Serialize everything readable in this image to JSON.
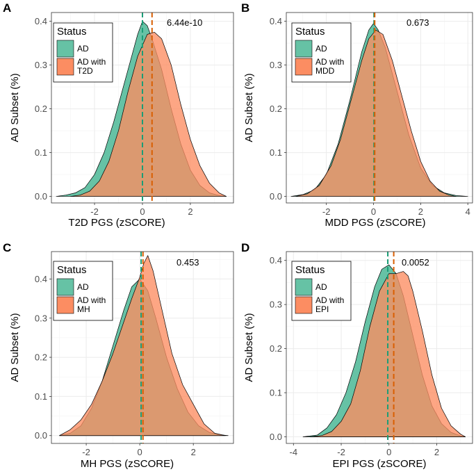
{
  "colors": {
    "ad": "#66c2a5",
    "ad_t2": "#fc8d62",
    "ad_line": "#1b9e77",
    "ad_t2_line": "#d95f02",
    "overlap": "#a08a50",
    "grid": "#ebebeb",
    "panel_border": "#333333"
  },
  "chart_data": [
    {
      "type": "area",
      "panel": "A",
      "pvalue": "6.44e-10",
      "xlabel": "T2D PGS (zSCORE)",
      "ylabel": "AD Subset (%)",
      "xlim": [
        -3.8,
        3.8
      ],
      "ylim": [
        -0.015,
        0.42
      ],
      "xticks": [
        -2,
        0,
        2
      ],
      "yticks": [
        0.0,
        0.1,
        0.2,
        0.3,
        0.4
      ],
      "legend": {
        "title": "Status",
        "labels": [
          "AD",
          "AD with\nT2D"
        ]
      },
      "series": [
        {
          "name": "AD",
          "mean": 0.0,
          "x": [
            -3.6,
            -3.2,
            -2.8,
            -2.4,
            -2.0,
            -1.6,
            -1.2,
            -0.8,
            -0.4,
            -0.2,
            0.0,
            0.2,
            0.4,
            0.8,
            1.2,
            1.6,
            2.0,
            2.4,
            2.8,
            3.2,
            3.5
          ],
          "y": [
            0.0,
            0.003,
            0.008,
            0.02,
            0.05,
            0.1,
            0.17,
            0.25,
            0.33,
            0.37,
            0.4,
            0.39,
            0.36,
            0.29,
            0.2,
            0.12,
            0.06,
            0.025,
            0.008,
            0.002,
            0.0
          ]
        },
        {
          "name": "AD with T2D",
          "mean": 0.4,
          "x": [
            -3.0,
            -2.6,
            -2.2,
            -1.8,
            -1.4,
            -1.0,
            -0.6,
            -0.2,
            0.2,
            0.5,
            0.8,
            1.2,
            1.6,
            2.0,
            2.4,
            2.8,
            3.2,
            3.5
          ],
          "y": [
            0.0,
            0.003,
            0.012,
            0.035,
            0.08,
            0.15,
            0.24,
            0.32,
            0.37,
            0.375,
            0.36,
            0.3,
            0.21,
            0.13,
            0.07,
            0.03,
            0.008,
            0.0
          ]
        }
      ]
    },
    {
      "type": "area",
      "panel": "B",
      "pvalue": "0.673",
      "xlabel": "MDD PGS (zSCORE)",
      "ylabel": "AD Subset (%)",
      "xlim": [
        -3.7,
        4.2
      ],
      "ylim": [
        -0.015,
        0.42
      ],
      "xticks": [
        -2,
        0,
        2,
        4
      ],
      "yticks": [
        0.0,
        0.1,
        0.2,
        0.3,
        0.4
      ],
      "legend": {
        "title": "Status",
        "labels": [
          "AD",
          "AD with\nMDD"
        ]
      },
      "series": [
        {
          "name": "AD",
          "mean": 0.02,
          "x": [
            -3.5,
            -3.0,
            -2.5,
            -2.0,
            -1.5,
            -1.0,
            -0.5,
            -0.2,
            0.0,
            0.2,
            0.5,
            1.0,
            1.5,
            2.0,
            2.5,
            3.0,
            3.5,
            4.0
          ],
          "y": [
            0.0,
            0.004,
            0.015,
            0.05,
            0.12,
            0.22,
            0.33,
            0.38,
            0.395,
            0.38,
            0.34,
            0.24,
            0.14,
            0.065,
            0.025,
            0.008,
            0.002,
            0.0
          ]
        },
        {
          "name": "AD with MDD",
          "mean": 0.05,
          "x": [
            -3.3,
            -2.8,
            -2.3,
            -1.8,
            -1.4,
            -1.0,
            -0.5,
            -0.2,
            0.1,
            0.4,
            0.8,
            1.2,
            1.6,
            2.0,
            2.4,
            2.8,
            3.2,
            3.5
          ],
          "y": [
            0.0,
            0.006,
            0.025,
            0.07,
            0.13,
            0.21,
            0.31,
            0.36,
            0.38,
            0.37,
            0.31,
            0.23,
            0.15,
            0.08,
            0.035,
            0.012,
            0.003,
            0.0
          ]
        }
      ]
    },
    {
      "type": "area",
      "panel": "C",
      "pvalue": "0.453",
      "xlabel": "MH PGS (zSCORE)",
      "ylabel": "AD Subset (%)",
      "xlim": [
        -3.3,
        3.5
      ],
      "ylim": [
        -0.02,
        0.47
      ],
      "xticks": [
        -2,
        0,
        2
      ],
      "yticks": [
        0.0,
        0.1,
        0.2,
        0.3,
        0.4
      ],
      "legend": {
        "title": "Status",
        "labels": [
          "AD",
          "AD with\nMH"
        ]
      },
      "series": [
        {
          "name": "AD",
          "mean": 0.05,
          "x": [
            -3.0,
            -2.6,
            -2.2,
            -1.8,
            -1.4,
            -1.0,
            -0.6,
            -0.3,
            0.0,
            0.3,
            0.6,
            1.0,
            1.4,
            1.8,
            2.2,
            2.6,
            3.0,
            3.3
          ],
          "y": [
            0.0,
            0.006,
            0.025,
            0.07,
            0.14,
            0.23,
            0.32,
            0.38,
            0.4,
            0.37,
            0.3,
            0.2,
            0.12,
            0.06,
            0.025,
            0.008,
            0.002,
            0.0
          ]
        },
        {
          "name": "AD with MH",
          "mean": 0.12,
          "x": [
            -3.0,
            -2.6,
            -2.2,
            -1.8,
            -1.4,
            -1.0,
            -0.6,
            -0.3,
            0.0,
            0.15,
            0.3,
            0.5,
            0.8,
            1.2,
            1.6,
            2.0,
            2.4,
            2.8,
            3.2
          ],
          "y": [
            0.0,
            0.015,
            0.04,
            0.08,
            0.14,
            0.21,
            0.29,
            0.35,
            0.405,
            0.44,
            0.46,
            0.42,
            0.33,
            0.21,
            0.13,
            0.08,
            0.03,
            0.006,
            0.0
          ]
        }
      ]
    },
    {
      "type": "area",
      "panel": "D",
      "pvalue": "0.0052",
      "xlabel": "EPI PGS (zSCORE)",
      "ylabel": "AD Subset (%)",
      "xlim": [
        -4.3,
        3.5
      ],
      "ylim": [
        -0.015,
        0.42
      ],
      "xticks": [
        -4,
        -2,
        0,
        2
      ],
      "yticks": [
        0.0,
        0.1,
        0.2,
        0.3,
        0.4
      ],
      "legend": {
        "title": "Status",
        "labels": [
          "AD",
          "AD with\nEPI"
        ]
      },
      "series": [
        {
          "name": "AD",
          "mean": -0.05,
          "x": [
            -3.6,
            -3.0,
            -2.6,
            -2.2,
            -1.8,
            -1.4,
            -1.0,
            -0.6,
            -0.3,
            0.0,
            0.3,
            0.6,
            1.0,
            1.4,
            1.8,
            2.2,
            2.6,
            3.0,
            3.2
          ],
          "y": [
            0.0,
            0.004,
            0.02,
            0.05,
            0.1,
            0.17,
            0.26,
            0.34,
            0.38,
            0.39,
            0.37,
            0.32,
            0.23,
            0.14,
            0.07,
            0.03,
            0.01,
            0.002,
            0.0
          ]
        },
        {
          "name": "AD with EPI",
          "mean": 0.2,
          "x": [
            -3.3,
            -2.8,
            -2.4,
            -2.0,
            -1.6,
            -1.2,
            -0.8,
            -0.4,
            0.0,
            0.3,
            0.6,
            0.8,
            1.0,
            1.4,
            1.8,
            2.2,
            2.6,
            3.0,
            3.2
          ],
          "y": [
            0.0,
            0.003,
            0.012,
            0.035,
            0.075,
            0.15,
            0.25,
            0.33,
            0.37,
            0.37,
            0.375,
            0.365,
            0.33,
            0.24,
            0.14,
            0.065,
            0.025,
            0.006,
            0.0
          ]
        }
      ]
    }
  ]
}
